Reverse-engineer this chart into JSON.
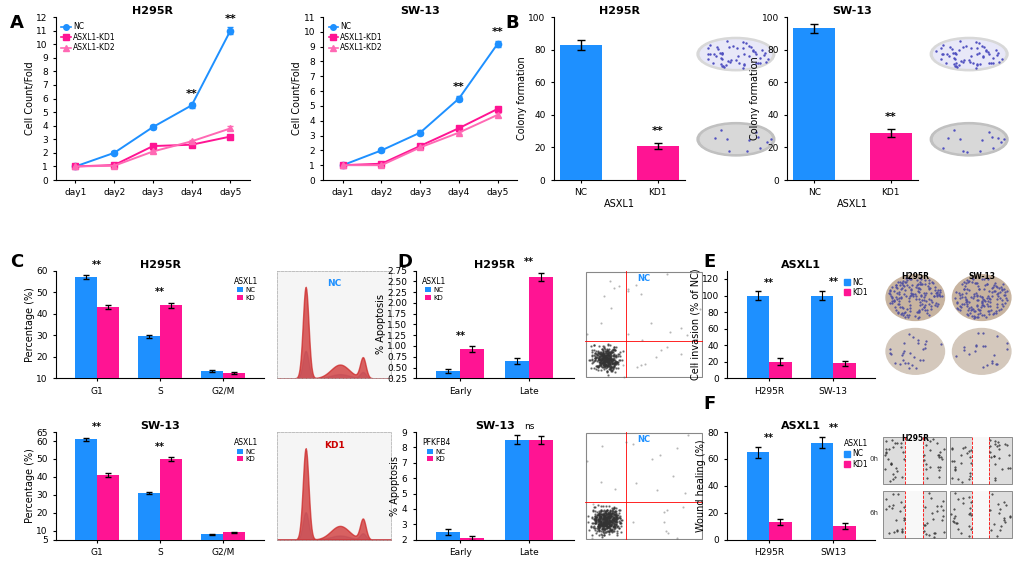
{
  "panel_A": {
    "title_left": "H295R",
    "title_right": "SW-13",
    "days": [
      "day1",
      "day2",
      "day3",
      "day4",
      "day5"
    ],
    "H295R": {
      "NC": [
        1.0,
        2.0,
        3.9,
        5.5,
        11.0
      ],
      "KD1": [
        1.0,
        1.1,
        2.5,
        2.6,
        3.2
      ],
      "KD2": [
        1.0,
        1.05,
        2.1,
        2.85,
        3.8
      ]
    },
    "H295R_err": {
      "NC": [
        0.05,
        0.1,
        0.15,
        0.2,
        0.25
      ],
      "KD1": [
        0.05,
        0.08,
        0.12,
        0.1,
        0.12
      ],
      "KD2": [
        0.05,
        0.07,
        0.1,
        0.12,
        0.15
      ]
    },
    "SW13": {
      "NC": [
        1.0,
        2.0,
        3.2,
        5.5,
        9.2
      ],
      "KD1": [
        1.0,
        1.1,
        2.3,
        3.5,
        4.8
      ],
      "KD2": [
        1.0,
        1.0,
        2.2,
        3.2,
        4.4
      ]
    },
    "SW13_err": {
      "NC": [
        0.05,
        0.1,
        0.15,
        0.2,
        0.2
      ],
      "KD1": [
        0.05,
        0.08,
        0.1,
        0.12,
        0.15
      ],
      "KD2": [
        0.05,
        0.07,
        0.09,
        0.1,
        0.12
      ]
    }
  },
  "panel_B": {
    "title_left": "H295R",
    "title_right": "SW-13",
    "H295R_values": [
      83,
      21
    ],
    "H295R_err": [
      3,
      2
    ],
    "SW13_values": [
      93,
      29
    ],
    "SW13_err": [
      3,
      2.5
    ],
    "categories": [
      "NC",
      "KD1"
    ],
    "ylabel": "Colony formation",
    "xlabel": "ASXL1",
    "ylim": [
      0,
      100
    ],
    "yticks": [
      0,
      20,
      40,
      60,
      80,
      100
    ]
  },
  "panel_C": {
    "title_top": "H295R",
    "title_bot": "SW-13",
    "categories": [
      "G1",
      "S",
      "G2/M"
    ],
    "H295R_NC": [
      57,
      29.5,
      13.5
    ],
    "H295R_KD": [
      43,
      44,
      12.5
    ],
    "H295R_NC_err": [
      0.8,
      0.7,
      0.5
    ],
    "H295R_KD_err": [
      1.0,
      1.2,
      0.5
    ],
    "SW13_NC": [
      61,
      31,
      8
    ],
    "SW13_KD": [
      41,
      50,
      9
    ],
    "SW13_NC_err": [
      0.8,
      0.6,
      0.4
    ],
    "SW13_KD_err": [
      1.2,
      1.0,
      0.5
    ],
    "ylabel": "Percentage (%)",
    "H295R_ylim": [
      10,
      60
    ],
    "H295R_yticks": [
      10,
      20,
      30,
      40,
      50,
      60
    ],
    "SW13_ylim": [
      5,
      65
    ],
    "SW13_yticks": [
      5,
      10,
      20,
      30,
      40,
      50,
      60,
      65
    ]
  },
  "panel_D": {
    "title_top": "H295R",
    "title_bot": "SW-13",
    "categories": [
      "Early",
      "Late"
    ],
    "H295R_NC": [
      0.42,
      0.65
    ],
    "H295R_KD": [
      0.92,
      2.6
    ],
    "H295R_NC_err": [
      0.05,
      0.06
    ],
    "H295R_KD_err": [
      0.07,
      0.1
    ],
    "SW13_NC": [
      2.5,
      8.5
    ],
    "SW13_KD": [
      2.1,
      8.5
    ],
    "SW13_NC_err": [
      0.2,
      0.3
    ],
    "SW13_KD_err": [
      0.15,
      0.25
    ],
    "H295R_ylabel": "% Apoptosis",
    "SW13_ylabel": "% Apoptosis",
    "H295R_ylim": [
      0.25,
      2.75
    ],
    "H295R_yticks": [
      0.25,
      0.5,
      0.75,
      1.0,
      1.25,
      1.5,
      1.75,
      2.0,
      2.25,
      2.5,
      2.75
    ],
    "SW13_ylim": [
      2,
      9
    ],
    "SW13_yticks": [
      2,
      3,
      4,
      5,
      6,
      7,
      8,
      9
    ],
    "SW13_legend_label": "PFKFB4"
  },
  "panel_E": {
    "title": "ASXL1",
    "categories": [
      "H295R",
      "SW-13"
    ],
    "NC_values": [
      100,
      100
    ],
    "KD1_values": [
      20,
      18
    ],
    "NC_err": [
      5,
      6
    ],
    "KD1_err": [
      4,
      3
    ],
    "ylabel": "Cell invasion (% of NC)",
    "ylim": [
      0,
      130
    ],
    "yticks": [
      0,
      20,
      40,
      60,
      80,
      100,
      120
    ]
  },
  "panel_F": {
    "title": "ASXL1",
    "categories": [
      "H295R",
      "SW13"
    ],
    "NC_values": [
      65,
      72
    ],
    "KD1_values": [
      13,
      10
    ],
    "NC_err": [
      4,
      4
    ],
    "KD1_err": [
      2,
      2
    ],
    "ylabel": "Wound healing (%)",
    "ylim": [
      0,
      80
    ],
    "yticks": [
      0,
      20,
      40,
      60,
      80
    ]
  },
  "colors": {
    "NC": "#1E90FF",
    "KD1": "#FF1493",
    "KD2": "#FF69B4",
    "background": "#FFFFFF"
  }
}
